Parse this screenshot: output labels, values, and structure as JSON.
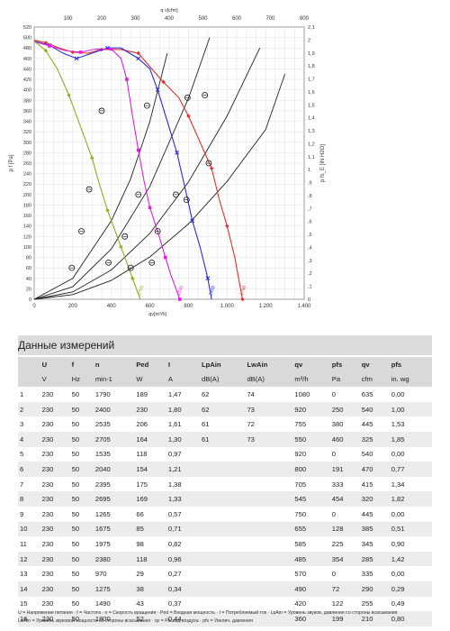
{
  "chart_data": {
    "type": "line",
    "title": "",
    "xlabel": "qv[m³/h]",
    "x2label": "q v[cfm]",
    "ylabel": "p f [Pa]",
    "y2label": "p fs_E [IN H2O]",
    "xlim": [
      0,
      1400
    ],
    "ylim": [
      0,
      520
    ],
    "x2lim": [
      0,
      800
    ],
    "y2lim": [
      0,
      2.1
    ],
    "x_ticks": [
      0,
      200,
      400,
      600,
      800,
      1000,
      1200,
      1400
    ],
    "x_tick_labels": [
      "0",
      "200",
      "400",
      "600",
      "800",
      "1.000",
      "1.200",
      "1.400"
    ],
    "x2_ticks": [
      100,
      200,
      300,
      400,
      500,
      600,
      700,
      800
    ],
    "y_ticks": [
      0,
      20,
      40,
      60,
      80,
      100,
      120,
      140,
      160,
      180,
      200,
      220,
      240,
      260,
      280,
      300,
      320,
      340,
      360,
      380,
      400,
      420,
      440,
      460,
      480,
      500,
      520
    ],
    "y2_ticks": [
      "0",
      ",1",
      ",2",
      ",3",
      ",4",
      ",5",
      ",6",
      ",7",
      ",8",
      ",9",
      "1",
      "1,1",
      "1,2",
      "1,3",
      "1,4",
      "1,5",
      "1,6",
      "1,7",
      "1,8",
      "1,9",
      "2",
      "2,1"
    ],
    "grid": true,
    "series": [
      {
        "name": "1790",
        "color": "#e0302c",
        "marker": "diamond",
        "x": [
          0,
          60,
          130,
          200,
          280,
          350,
          450,
          540,
          610,
          670,
          750,
          800,
          860,
          920,
          960,
          1000,
          1040,
          1080
        ],
        "y": [
          495,
          490,
          480,
          472,
          470,
          477,
          477,
          470,
          440,
          415,
          385,
          350,
          300,
          250,
          190,
          140,
          80,
          0
        ]
      },
      {
        "name": "2400",
        "color": "#2a2ae0",
        "marker": "x",
        "x": [
          0,
          80,
          150,
          220,
          300,
          380,
          450,
          540,
          600,
          640,
          690,
          740,
          790,
          820,
          860,
          900,
          920
        ],
        "y": [
          493,
          485,
          470,
          460,
          470,
          480,
          480,
          460,
          440,
          400,
          340,
          280,
          200,
          150,
          100,
          40,
          0
        ]
      },
      {
        "name": "2535",
        "color": "#e020e0",
        "marker": "square",
        "x": [
          0,
          80,
          160,
          240,
          320,
          400,
          450,
          480,
          510,
          540,
          570,
          600,
          640,
          680,
          710,
          755
        ],
        "y": [
          492,
          484,
          475,
          472,
          478,
          478,
          460,
          420,
          350,
          285,
          225,
          175,
          130,
          80,
          45,
          0
        ]
      },
      {
        "name": "2705",
        "color": "#8ab020",
        "marker": "diamond",
        "x": [
          0,
          60,
          120,
          180,
          240,
          300,
          330,
          380,
          420,
          450,
          480,
          510,
          550
        ],
        "y": [
          493,
          475,
          440,
          390,
          330,
          270,
          230,
          170,
          130,
          100,
          70,
          40,
          0
        ]
      }
    ],
    "system_curves": [
      {
        "x": [
          0,
          200,
          400,
          500,
          600,
          690
        ],
        "y": [
          0,
          40,
          150,
          230,
          340,
          470
        ]
      },
      {
        "x": [
          0,
          200,
          400,
          600,
          800,
          910
        ],
        "y": [
          0,
          24,
          96,
          216,
          384,
          500
        ]
      },
      {
        "x": [
          0,
          200,
          400,
          600,
          800,
          1000,
          1170
        ],
        "y": [
          0,
          14,
          56,
          126,
          224,
          350,
          480
        ]
      },
      {
        "x": [
          0,
          200,
          400,
          600,
          800,
          1000,
          1200,
          1300
        ],
        "y": [
          0,
          9,
          36,
          81,
          144,
          225,
          324,
          430
        ]
      }
    ],
    "operating_points": [
      {
        "x": 350,
        "y": 360
      },
      {
        "x": 285,
        "y": 210
      },
      {
        "x": 245,
        "y": 130
      },
      {
        "x": 195,
        "y": 60
      },
      {
        "x": 585,
        "y": 370
      },
      {
        "x": 540,
        "y": 200
      },
      {
        "x": 470,
        "y": 120
      },
      {
        "x": 385,
        "y": 70
      },
      {
        "x": 795,
        "y": 385
      },
      {
        "x": 735,
        "y": 200
      },
      {
        "x": 640,
        "y": 130
      },
      {
        "x": 500,
        "y": 60
      },
      {
        "x": 885,
        "y": 390
      },
      {
        "x": 905,
        "y": 260
      },
      {
        "x": 790,
        "y": 190
      },
      {
        "x": 610,
        "y": 70
      }
    ]
  },
  "section": {
    "title": "Данные измерений"
  },
  "table": {
    "headers": [
      "",
      "U",
      "f",
      "n",
      "Ped",
      "I",
      "LpAin",
      "LwAin",
      "qv",
      "pfs",
      "qv",
      "pfs"
    ],
    "units": [
      "",
      "V",
      "Hz",
      "min-1",
      "W",
      "A",
      "dB(A)",
      "dB(A)",
      "m³/h",
      "Pa",
      "cfm",
      "in. wg"
    ],
    "rows": [
      [
        "1",
        "230",
        "50",
        "1790",
        "189",
        "1,47",
        "62",
        "74",
        "1080",
        "0",
        "635",
        "0,00"
      ],
      [
        "2",
        "230",
        "50",
        "2400",
        "230",
        "1,80",
        "62",
        "73",
        "920",
        "250",
        "540",
        "1,00"
      ],
      [
        "3",
        "230",
        "50",
        "2535",
        "206",
        "1,61",
        "61",
        "72",
        "755",
        "380",
        "445",
        "1,53"
      ],
      [
        "4",
        "230",
        "50",
        "2705",
        "164",
        "1,30",
        "61",
        "73",
        "550",
        "460",
        "325",
        "1,85"
      ],
      [
        "5",
        "230",
        "50",
        "1535",
        "118",
        "0,97",
        "",
        "",
        "920",
        "0",
        "540",
        "0,00"
      ],
      [
        "6",
        "230",
        "50",
        "2040",
        "154",
        "1,21",
        "",
        "",
        "800",
        "191",
        "470",
        "0,77"
      ],
      [
        "7",
        "230",
        "50",
        "2395",
        "175",
        "1,38",
        "",
        "",
        "705",
        "333",
        "415",
        "1,34"
      ],
      [
        "8",
        "230",
        "50",
        "2695",
        "169",
        "1,33",
        "",
        "",
        "545",
        "454",
        "320",
        "1,82"
      ],
      [
        "9",
        "230",
        "50",
        "1265",
        "66",
        "0,57",
        "",
        "",
        "750",
        "0",
        "445",
        "0,00"
      ],
      [
        "10",
        "230",
        "50",
        "1675",
        "85",
        "0,71",
        "",
        "",
        "655",
        "128",
        "385",
        "0,51"
      ],
      [
        "11",
        "230",
        "50",
        "1975",
        "98",
        "0,82",
        "",
        "",
        "585",
        "225",
        "345",
        "0,90"
      ],
      [
        "12",
        "230",
        "50",
        "2380",
        "118",
        "0,96",
        "",
        "",
        "485",
        "354",
        "285",
        "1,42"
      ],
      [
        "13",
        "230",
        "50",
        "970",
        "29",
        "0,27",
        "",
        "",
        "570",
        "0",
        "335",
        "0,00"
      ],
      [
        "14",
        "230",
        "50",
        "1275",
        "38",
        "0,34",
        "",
        "",
        "490",
        "72",
        "290",
        "0,29"
      ],
      [
        "15",
        "230",
        "50",
        "1490",
        "43",
        "0,37",
        "",
        "",
        "420",
        "122",
        "255",
        "0,49"
      ],
      [
        "16",
        "230",
        "50",
        "1800",
        "52",
        "0,44",
        "",
        "",
        "360",
        "199",
        "210",
        "0,80"
      ]
    ]
  },
  "footnote": {
    "line1": "U = Напряжение питания · f = Частота · n = Скорость вращения · Ped = Входная мощность · I = Потребляемый ток · LpAin = Уровень звуков. давления со стороны всасывания",
    "line2": "LwAin = Уровень звуковой мощности со стороны всасывания · qv = Расход воздуха · pfs = Увелич. давления"
  }
}
